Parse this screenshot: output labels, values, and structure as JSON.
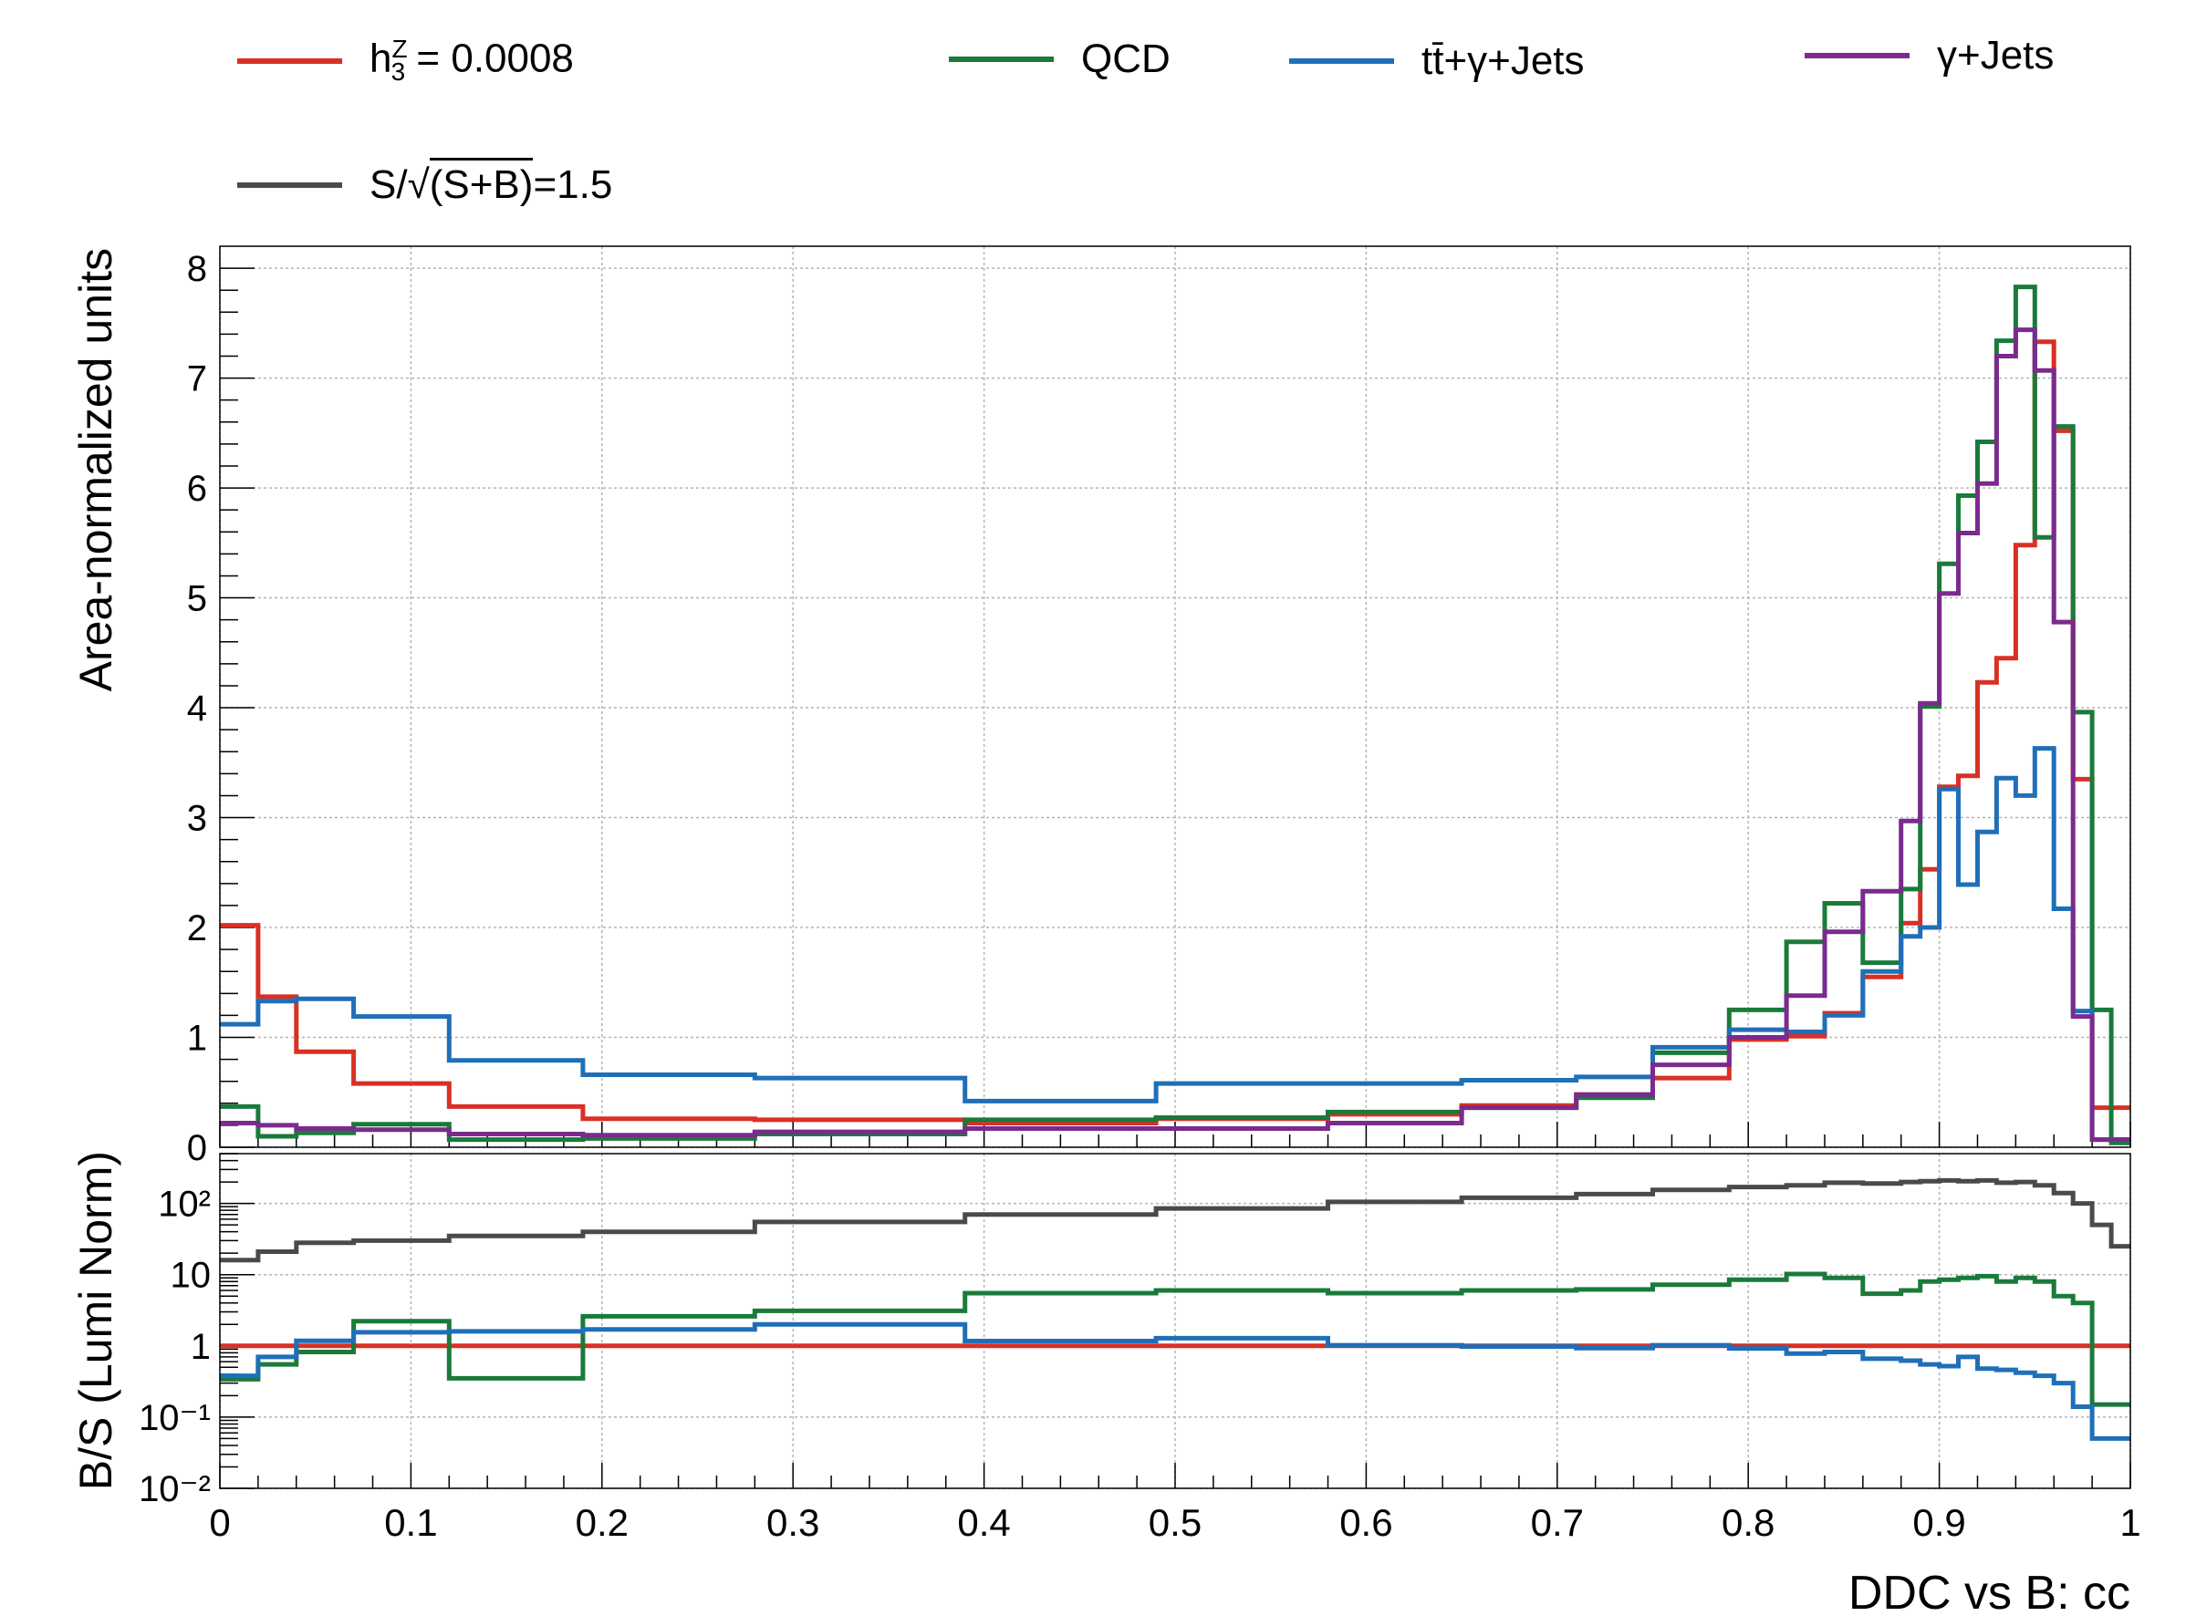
{
  "legend": {
    "signal_base": "h",
    "signal_sup": "Z",
    "signal_sub": "3",
    "signal_value": "= 0.0008",
    "qcd": "QCD",
    "ttgamma": "tt̄+γ+Jets",
    "gammajets": "γ+Jets",
    "significance_prefix": "S/",
    "significance_radicand": "(S+B)",
    "significance_value": "=1.5"
  },
  "chart_data": [
    {
      "type": "line",
      "drawstyle": "step",
      "panel": "top",
      "xlabel": "",
      "ylabel": "Area-normalized units",
      "xlim": [
        0,
        1
      ],
      "ylim": [
        0,
        8.2
      ],
      "yticks": [
        0,
        1,
        2,
        3,
        4,
        5,
        6,
        7,
        8
      ],
      "grid": true,
      "bin_edges": [
        0.0,
        0.02,
        0.04,
        0.07,
        0.12,
        0.19,
        0.28,
        0.39,
        0.49,
        0.58,
        0.65,
        0.71,
        0.75,
        0.79,
        0.82,
        0.84,
        0.86,
        0.88,
        0.89,
        0.9,
        0.91,
        0.92,
        0.93,
        0.94,
        0.95,
        0.96,
        0.97,
        0.98,
        0.99,
        1.0
      ],
      "series": [
        {
          "name": "h3Z = 0.0008",
          "color": "#d93025",
          "values": [
            2.02,
            1.37,
            0.87,
            0.58,
            0.37,
            0.26,
            0.25,
            0.22,
            0.26,
            0.3,
            0.38,
            0.48,
            0.63,
            0.98,
            1.01,
            1.22,
            1.55,
            2.04,
            2.53,
            3.28,
            3.38,
            4.23,
            4.45,
            5.48,
            7.33,
            6.52,
            3.35,
            0.36,
            0.36
          ]
        },
        {
          "name": "QCD",
          "color": "#1a7a3a",
          "values": [
            0.37,
            0.1,
            0.13,
            0.21,
            0.07,
            0.08,
            0.12,
            0.25,
            0.27,
            0.32,
            0.36,
            0.45,
            0.86,
            1.25,
            1.87,
            2.22,
            1.68,
            2.35,
            4.01,
            5.31,
            5.93,
            6.42,
            7.34,
            7.83,
            5.55,
            6.56,
            3.96,
            1.25,
            0.04
          ]
        },
        {
          "name": "tt̄+γ+Jets",
          "color": "#1f6fb8",
          "values": [
            1.12,
            1.33,
            1.35,
            1.19,
            0.79,
            0.66,
            0.63,
            0.42,
            0.58,
            0.58,
            0.61,
            0.64,
            0.91,
            1.07,
            1.05,
            1.2,
            1.6,
            1.92,
            2.0,
            3.26,
            2.39,
            2.87,
            3.36,
            3.2,
            3.63,
            2.17,
            1.24,
            0.07,
            0.07
          ]
        },
        {
          "name": "γ+Jets",
          "color": "#7b2a8e",
          "values": [
            0.22,
            0.2,
            0.17,
            0.16,
            0.12,
            0.11,
            0.14,
            0.17,
            0.17,
            0.22,
            0.36,
            0.48,
            0.75,
            1.0,
            1.38,
            1.96,
            2.33,
            2.97,
            4.04,
            5.04,
            5.59,
            6.04,
            7.2,
            7.44,
            7.07,
            4.78,
            1.19,
            0.07,
            0.07
          ]
        }
      ]
    },
    {
      "type": "line",
      "drawstyle": "step",
      "panel": "bottom",
      "xlabel": "DDC vs B: cc",
      "ylabel": "B/S (Lumi Norm)",
      "xlim": [
        0,
        1
      ],
      "ylim": [
        0.01,
        500
      ],
      "yscale": "log",
      "ytick_labels": [
        "10⁻²",
        "10⁻¹",
        "1",
        "10",
        "10²"
      ],
      "xticks": [
        0,
        0.1,
        0.2,
        0.3,
        0.4,
        0.5,
        0.6,
        0.7,
        0.8,
        0.9,
        1
      ],
      "grid": true,
      "bin_edges": [
        0.0,
        0.02,
        0.04,
        0.07,
        0.12,
        0.19,
        0.28,
        0.39,
        0.49,
        0.58,
        0.65,
        0.71,
        0.75,
        0.79,
        0.82,
        0.84,
        0.86,
        0.88,
        0.89,
        0.9,
        0.91,
        0.92,
        0.93,
        0.94,
        0.95,
        0.96,
        0.97,
        0.98,
        0.99,
        1.0
      ],
      "series": [
        {
          "name": "h3Z = 0.0008",
          "color": "#d93025",
          "values": [
            1,
            1,
            1,
            1,
            1,
            1,
            1,
            1,
            1,
            1,
            1,
            1,
            1,
            1,
            1,
            1,
            1,
            1,
            1,
            1,
            1,
            1,
            1,
            1,
            1,
            1,
            1,
            1,
            1
          ]
        },
        {
          "name": "QCD",
          "color": "#1a7a3a",
          "values": [
            0.34,
            0.55,
            0.82,
            2.22,
            0.35,
            2.6,
            3.1,
            5.5,
            6.0,
            5.5,
            6.0,
            6.2,
            7.2,
            8.5,
            10.2,
            9.0,
            5.4,
            6.0,
            8.0,
            8.5,
            9.0,
            9.5,
            8.0,
            9.0,
            8.0,
            5.0,
            4.0,
            0.15,
            0.15
          ]
        },
        {
          "name": "tt̄+γ+Jets",
          "color": "#1f6fb8",
          "values": [
            0.38,
            0.7,
            1.18,
            1.55,
            1.6,
            1.7,
            2.0,
            1.17,
            1.28,
            1.02,
            0.98,
            0.93,
            1.02,
            0.92,
            0.78,
            0.82,
            0.66,
            0.62,
            0.55,
            0.52,
            0.7,
            0.48,
            0.46,
            0.42,
            0.38,
            0.3,
            0.14,
            0.05,
            0.05
          ]
        },
        {
          "name": "S/√(S+B)=1.5",
          "color": "#4a4a4a",
          "values": [
            16,
            21,
            28,
            30,
            35,
            40,
            55,
            70,
            85,
            105,
            120,
            135,
            155,
            170,
            180,
            195,
            190,
            200,
            205,
            210,
            205,
            210,
            195,
            200,
            180,
            140,
            100,
            50,
            25
          ]
        }
      ]
    }
  ]
}
